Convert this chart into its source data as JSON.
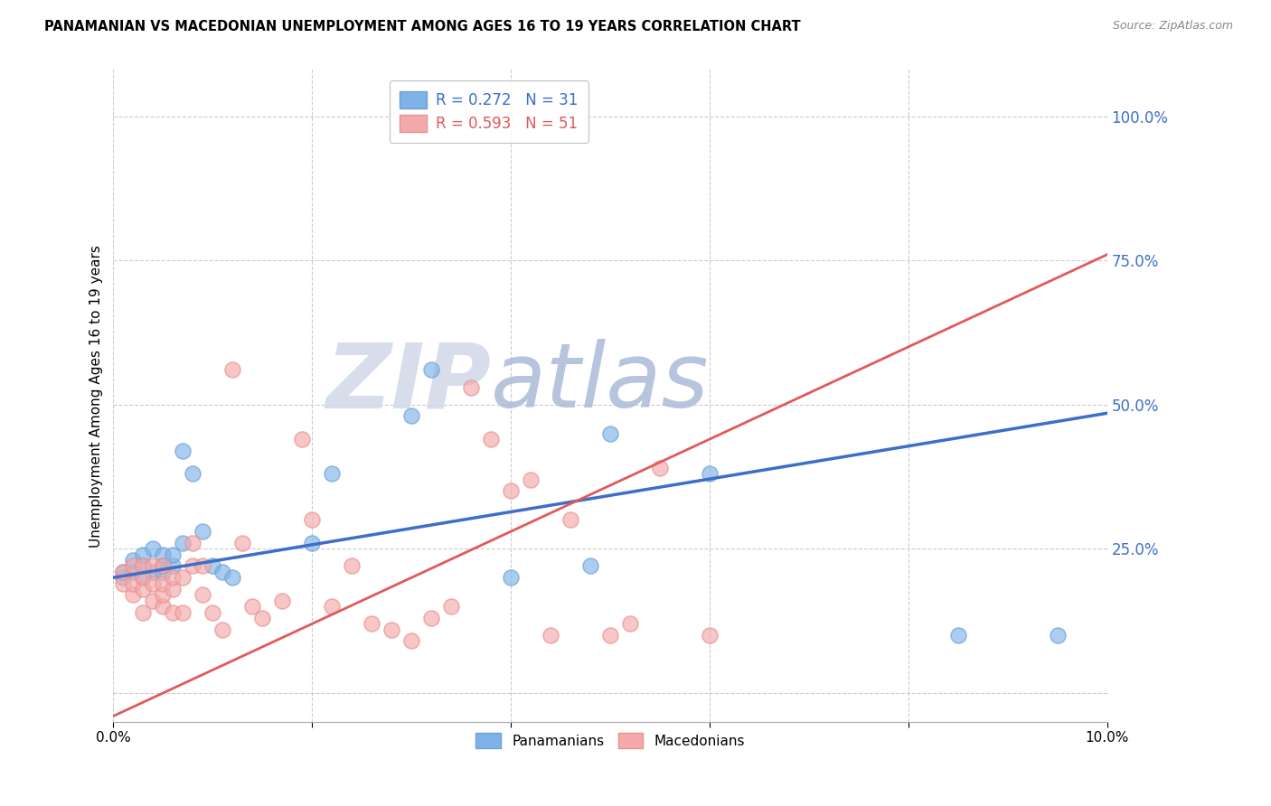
{
  "title": "PANAMANIAN VS MACEDONIAN UNEMPLOYMENT AMONG AGES 16 TO 19 YEARS CORRELATION CHART",
  "source": "Source: ZipAtlas.com",
  "ylabel": "Unemployment Among Ages 16 to 19 years",
  "xlim": [
    0.0,
    0.1
  ],
  "ylim": [
    -0.05,
    1.08
  ],
  "ytick_vals": [
    0.0,
    0.25,
    0.5,
    0.75,
    1.0
  ],
  "ytick_labels": [
    "",
    "25.0%",
    "50.0%",
    "75.0%",
    "100.0%"
  ],
  "xtick_vals": [
    0.0,
    0.02,
    0.04,
    0.06,
    0.08,
    0.1
  ],
  "xtick_labels": [
    "0.0%",
    "",
    "",
    "",
    "",
    "10.0%"
  ],
  "pan_color": "#7fb3e8",
  "mac_color": "#f4aaaa",
  "pan_edge_color": "#6fa0d8",
  "mac_edge_color": "#e89090",
  "pan_line_color": "#3d6ec9",
  "mac_line_color": "#e05a5a",
  "R_pan": 0.272,
  "N_pan": 31,
  "R_mac": 0.593,
  "N_mac": 51,
  "watermark_zip": "ZIP",
  "watermark_atlas": "atlas",
  "watermark_zip_color": "#d0d8e8",
  "watermark_atlas_color": "#aabbd8",
  "pan_line_x0": 0.0,
  "pan_line_y0": 0.2,
  "pan_line_x1": 0.1,
  "pan_line_y1": 0.485,
  "mac_line_x0": 0.0,
  "mac_line_y0": -0.04,
  "mac_line_x1": 0.1,
  "mac_line_y1": 0.76,
  "pan_x": [
    0.001,
    0.001,
    0.002,
    0.002,
    0.003,
    0.003,
    0.003,
    0.004,
    0.004,
    0.005,
    0.005,
    0.005,
    0.006,
    0.006,
    0.007,
    0.007,
    0.008,
    0.009,
    0.01,
    0.011,
    0.012,
    0.02,
    0.022,
    0.03,
    0.032,
    0.04,
    0.048,
    0.05,
    0.06,
    0.085,
    0.095
  ],
  "pan_y": [
    0.2,
    0.21,
    0.21,
    0.23,
    0.2,
    0.22,
    0.24,
    0.21,
    0.25,
    0.21,
    0.22,
    0.24,
    0.22,
    0.24,
    0.26,
    0.42,
    0.38,
    0.28,
    0.22,
    0.21,
    0.2,
    0.26,
    0.38,
    0.48,
    0.56,
    0.2,
    0.22,
    0.45,
    0.38,
    0.1,
    0.1
  ],
  "mac_x": [
    0.001,
    0.001,
    0.002,
    0.002,
    0.002,
    0.003,
    0.003,
    0.003,
    0.003,
    0.004,
    0.004,
    0.004,
    0.005,
    0.005,
    0.005,
    0.005,
    0.006,
    0.006,
    0.006,
    0.007,
    0.007,
    0.008,
    0.008,
    0.009,
    0.009,
    0.01,
    0.011,
    0.012,
    0.013,
    0.014,
    0.015,
    0.017,
    0.019,
    0.02,
    0.022,
    0.024,
    0.026,
    0.028,
    0.03,
    0.032,
    0.034,
    0.036,
    0.038,
    0.04,
    0.042,
    0.044,
    0.046,
    0.05,
    0.052,
    0.055,
    0.06
  ],
  "mac_y": [
    0.19,
    0.21,
    0.17,
    0.19,
    0.22,
    0.14,
    0.18,
    0.2,
    0.22,
    0.16,
    0.19,
    0.22,
    0.15,
    0.17,
    0.19,
    0.22,
    0.14,
    0.18,
    0.2,
    0.14,
    0.2,
    0.22,
    0.26,
    0.17,
    0.22,
    0.14,
    0.11,
    0.56,
    0.26,
    0.15,
    0.13,
    0.16,
    0.44,
    0.3,
    0.15,
    0.22,
    0.12,
    0.11,
    0.09,
    0.13,
    0.15,
    0.53,
    0.44,
    0.35,
    0.37,
    0.1,
    0.3,
    0.1,
    0.12,
    0.39,
    0.1
  ]
}
